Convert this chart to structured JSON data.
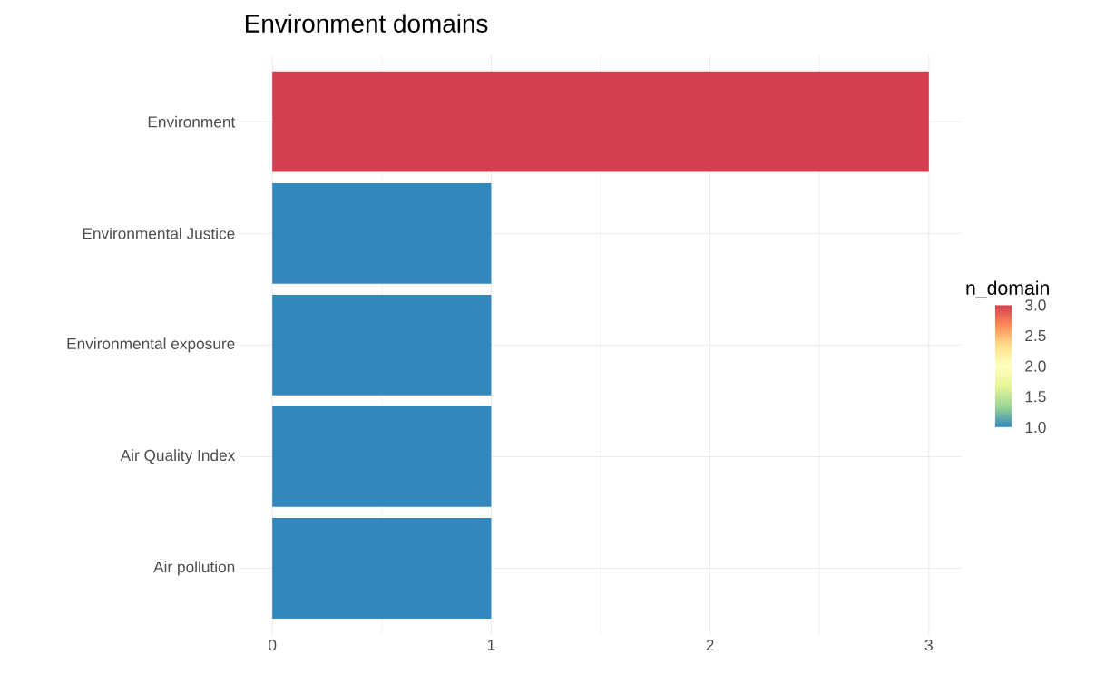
{
  "chart_data": {
    "type": "bar",
    "orientation": "horizontal",
    "title": "Environment domains",
    "categories": [
      "Environment",
      "Environmental Justice",
      "Environmental exposure",
      "Air Quality Index",
      "Air pollution"
    ],
    "values": [
      3,
      1,
      1,
      1,
      1
    ],
    "colors": [
      "#d53e4f",
      "#3288bd",
      "#3288bd",
      "#3288bd",
      "#3288bd"
    ],
    "xlim": [
      -0.15,
      3.15
    ],
    "xticks": [
      0,
      1,
      2,
      3
    ],
    "grid": true,
    "clabel": "n_domain",
    "clim": [
      1,
      3
    ],
    "cticks": [
      {
        "value": 1,
        "label": "1.0"
      },
      {
        "value": 1.5,
        "label": "1.5"
      },
      {
        "value": 2,
        "label": "2.0"
      },
      {
        "value": 2.5,
        "label": "2.5"
      },
      {
        "value": 3,
        "label": "3.0"
      }
    ]
  }
}
